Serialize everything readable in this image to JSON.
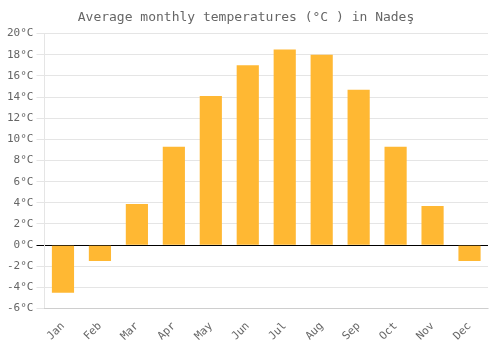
{
  "chart_data": {
    "type": "bar",
    "title": "Average monthly temperatures (°C ) in Nadeş",
    "categories": [
      "Jan",
      "Feb",
      "Mar",
      "Apr",
      "May",
      "Jun",
      "Jul",
      "Aug",
      "Sep",
      "Oct",
      "Nov",
      "Dec"
    ],
    "values": [
      -4.5,
      -1.5,
      3.9,
      9.3,
      14.1,
      17.0,
      18.5,
      18.0,
      14.7,
      9.3,
      3.7,
      -1.5
    ],
    "color": "#FFB833",
    "ylim": [
      -6,
      20
    ],
    "yticks": [
      {
        "value": -6,
        "label": "-6°C"
      },
      {
        "value": -4,
        "label": "-4°C"
      },
      {
        "value": -2,
        "label": "-2°C"
      },
      {
        "value": 0,
        "label": "0°C"
      },
      {
        "value": 2,
        "label": "2°C"
      },
      {
        "value": 4,
        "label": "4°C"
      },
      {
        "value": 6,
        "label": "6°C"
      },
      {
        "value": 8,
        "label": "8°C"
      },
      {
        "value": 10,
        "label": "10°C"
      },
      {
        "value": 12,
        "label": "12°C"
      },
      {
        "value": 14,
        "label": "14°C"
      },
      {
        "value": 16,
        "label": "16°C"
      },
      {
        "value": 18,
        "label": "18°C"
      },
      {
        "value": 20,
        "label": "20°C"
      }
    ],
    "grid": true
  }
}
